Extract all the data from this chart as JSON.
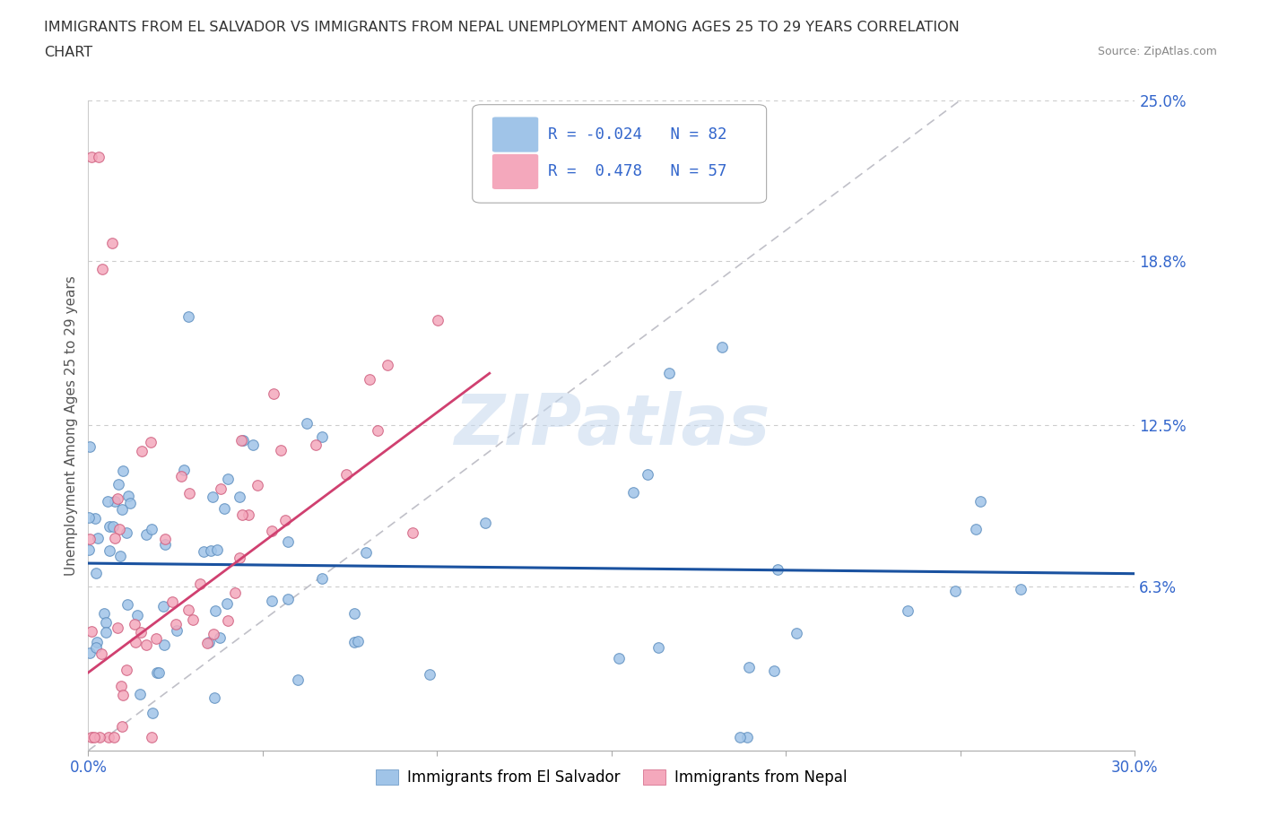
{
  "title_line1": "IMMIGRANTS FROM EL SALVADOR VS IMMIGRANTS FROM NEPAL UNEMPLOYMENT AMONG AGES 25 TO 29 YEARS CORRELATION",
  "title_line2": "CHART",
  "source_text": "Source: ZipAtlas.com",
  "ylabel": "Unemployment Among Ages 25 to 29 years",
  "xlim": [
    0.0,
    0.3
  ],
  "ylim": [
    0.0,
    0.25
  ],
  "y_ticks": [
    0.0,
    0.063,
    0.125,
    0.188,
    0.25
  ],
  "y_tick_labels": [
    "",
    "6.3%",
    "12.5%",
    "18.8%",
    "25.0%"
  ],
  "x_ticks": [
    0.0,
    0.05,
    0.1,
    0.15,
    0.2,
    0.25,
    0.3
  ],
  "x_tick_labels": [
    "0.0%",
    "",
    "",
    "",
    "",
    "",
    "30.0%"
  ],
  "color_blue": "#a0c4e8",
  "color_pink": "#f4a8bc",
  "color_blue_line": "#1a52a0",
  "color_pink_line": "#d04070",
  "color_diag_line": "#c0c0c8",
  "watermark_text": "ZIPatlas",
  "legend_label_blue": "Immigrants from El Salvador",
  "legend_label_pink": "Immigrants from Nepal",
  "legend_r_blue": "R = -0.024",
  "legend_n_blue": "N = 82",
  "legend_r_pink": "R =  0.478",
  "legend_n_pink": "N = 57",
  "grid_color": "#cccccc",
  "background_color": "#ffffff",
  "title_color": "#333333",
  "tick_label_color": "#3366cc",
  "axis_label_color": "#555555",
  "blue_trend_y_start": 0.072,
  "blue_trend_y_end": 0.068,
  "pink_trend_x_start": 0.0,
  "pink_trend_y_start": 0.03,
  "pink_trend_x_end": 0.115,
  "pink_trend_y_end": 0.145
}
